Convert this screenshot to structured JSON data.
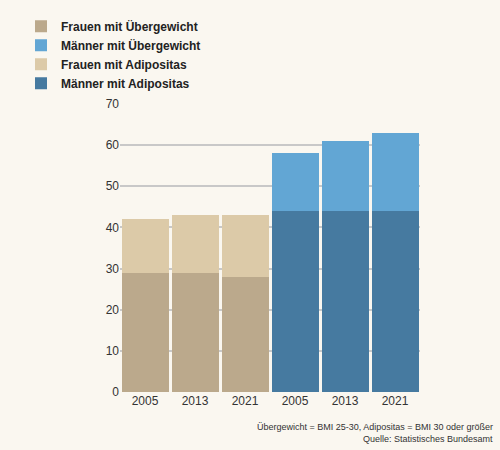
{
  "chart_data": {
    "type": "bar",
    "stacked": true,
    "categories": [
      "2005",
      "2013",
      "2021",
      "2005",
      "2013",
      "2021"
    ],
    "series": [
      {
        "name": "Frauen mit Übergewicht",
        "color": "#bba98c",
        "values": [
          29,
          29,
          28,
          null,
          null,
          null
        ]
      },
      {
        "name": "Frauen mit Adipositas",
        "color": "#dccaa8",
        "values": [
          13,
          14,
          15,
          null,
          null,
          null
        ]
      },
      {
        "name": "Männer mit Adipositas",
        "color": "#467aa0",
        "values": [
          null,
          null,
          null,
          44,
          44,
          44
        ]
      },
      {
        "name": "Männer mit Übergewicht",
        "color": "#62a6d4",
        "values": [
          null,
          null,
          null,
          14,
          17,
          19
        ]
      }
    ],
    "ylim": [
      0,
      70
    ],
    "yticks": [
      0,
      10,
      20,
      30,
      40,
      50,
      60,
      70
    ],
    "grid": true,
    "legend": "top",
    "annotations": [
      "Übergewicht = BMI 25-30, Adipositas = BMI 30 oder größer",
      "Quelle: Statistisches Bundesamt"
    ]
  }
}
